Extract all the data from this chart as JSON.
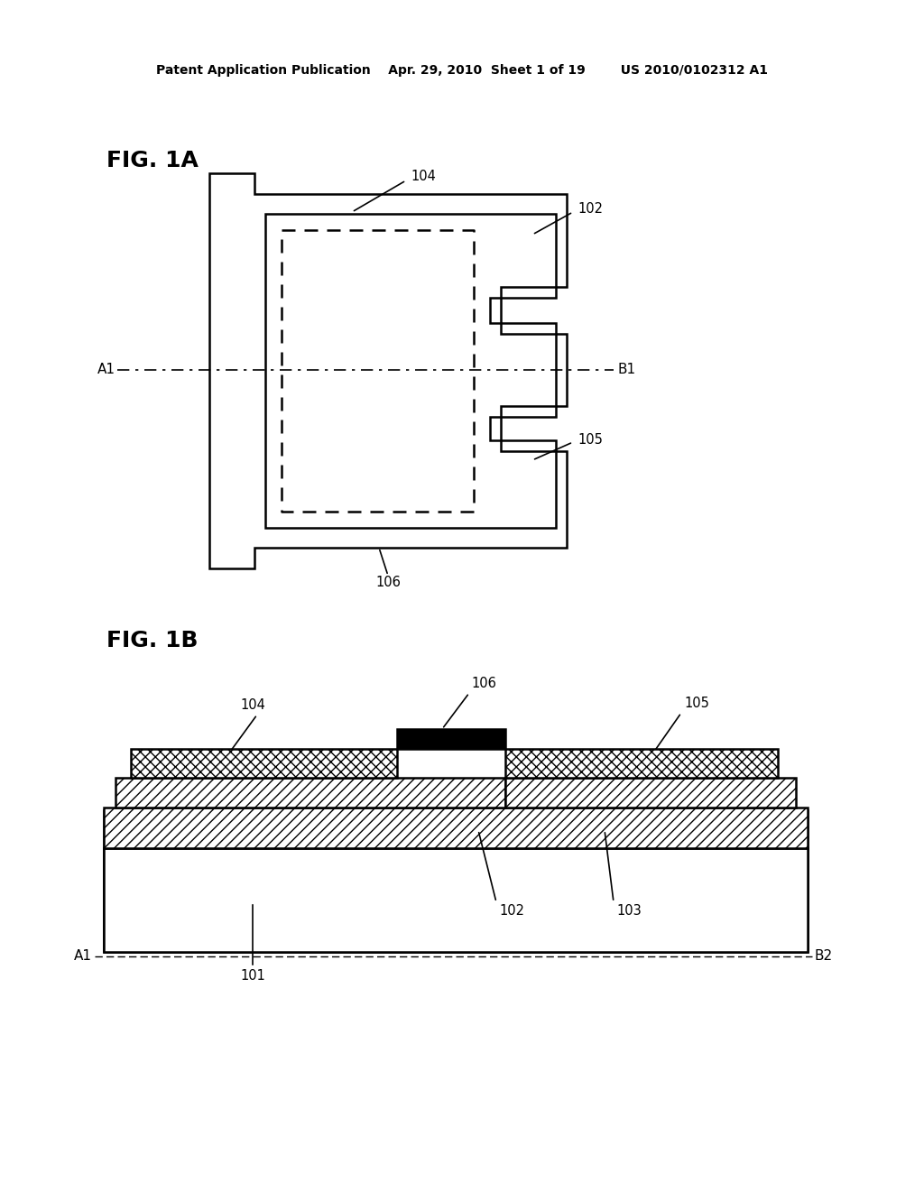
{
  "bg_color": "#ffffff",
  "header_text": "Patent Application Publication    Apr. 29, 2010  Sheet 1 of 19        US 2010/0102312 A1",
  "fig1a_label": "FIG. 1A",
  "fig1b_label": "FIG. 1B",
  "label_color": "#000000",
  "line_color": "#000000",
  "hatch_color": "#000000"
}
